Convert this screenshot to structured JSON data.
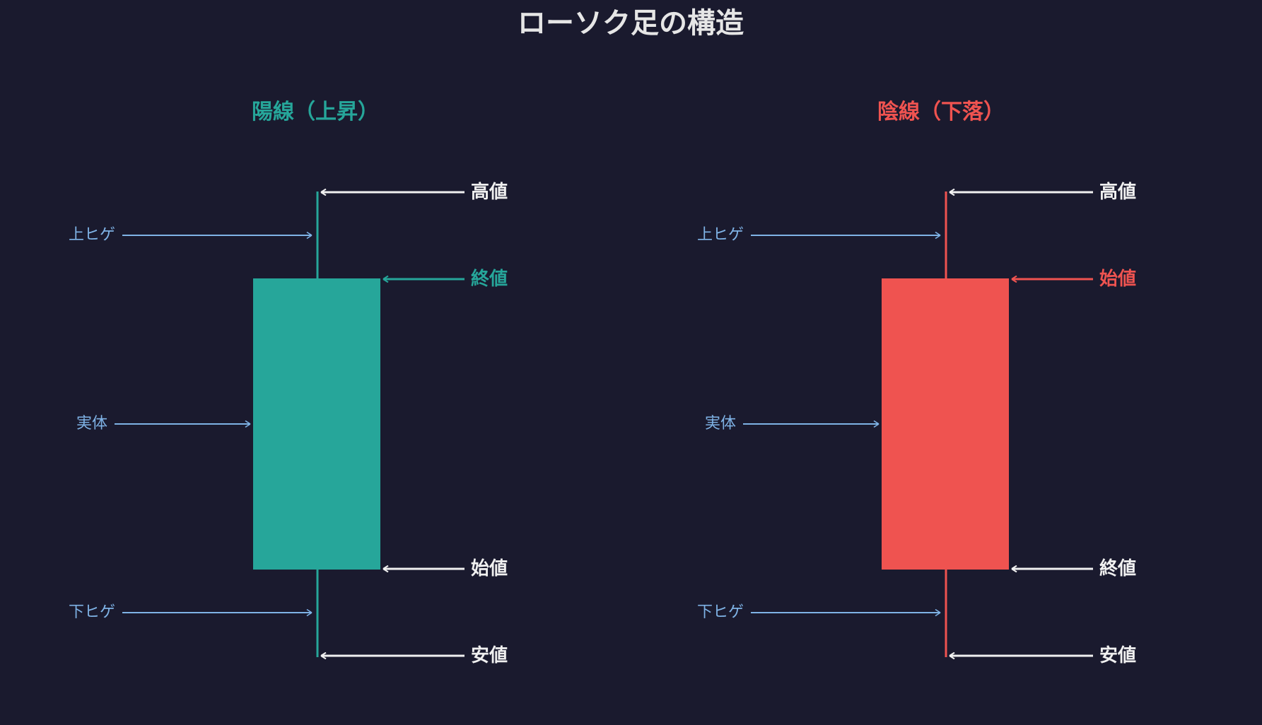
{
  "title": "ローソク足の構造",
  "colors": {
    "background": "#1a1a2e",
    "title": "#e6e6e6",
    "bullish": "#26a69a",
    "bearish": "#ef5350",
    "annotation": "#7fb3e6",
    "label": "#f0f0f0"
  },
  "panels": [
    {
      "key": "bullish",
      "title": "陽線（上昇）",
      "color_role": "bullish",
      "high_label": "高値",
      "body_top_label": "終値",
      "body_top_color_role": "bullish",
      "body_bottom_label": "始値",
      "body_bottom_color_role": "label",
      "low_label": "安値",
      "upper_wick_label": "上ヒゲ",
      "body_label": "実体",
      "lower_wick_label": "下ヒゲ"
    },
    {
      "key": "bearish",
      "title": "陰線（下落）",
      "color_role": "bearish",
      "high_label": "高値",
      "body_top_label": "始値",
      "body_top_color_role": "bearish",
      "body_bottom_label": "終値",
      "body_bottom_color_role": "label",
      "low_label": "安値",
      "upper_wick_label": "上ヒゲ",
      "body_label": "実体",
      "lower_wick_label": "下ヒゲ"
    }
  ]
}
